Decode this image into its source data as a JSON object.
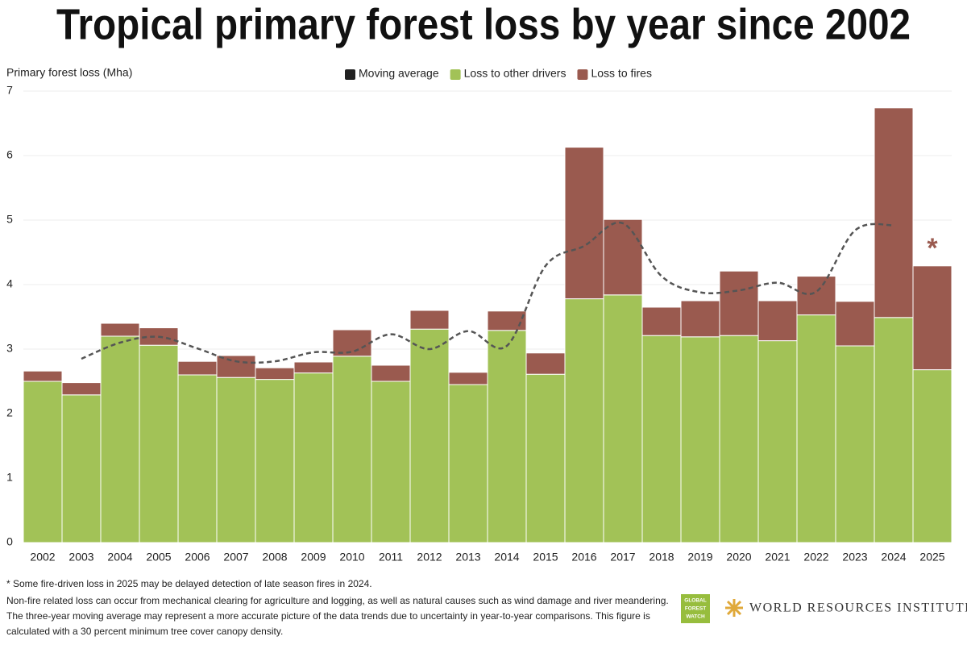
{
  "chart_data": {
    "type": "bar",
    "stacked": true,
    "title": "Tropical primary forest loss by year since 2002",
    "y_label": "Primary forest loss (Mha)",
    "annotation": "*",
    "categories": [
      "2002",
      "2003",
      "2004",
      "2005",
      "2006",
      "2007",
      "2008",
      "2009",
      "2010",
      "2011",
      "2012",
      "2013",
      "2014",
      "2015",
      "2016",
      "2017",
      "2018",
      "2019",
      "2020",
      "2021",
      "2022",
      "2023",
      "2024",
      "2025"
    ],
    "series": [
      {
        "name": "Moving average",
        "type": "line",
        "color": "#555555",
        "legend_color": "#222222",
        "values": [
          null,
          2.85,
          3.1,
          3.19,
          3.01,
          2.81,
          2.81,
          2.95,
          2.96,
          3.23,
          3.0,
          3.28,
          3.05,
          4.29,
          4.6,
          4.95,
          4.13,
          3.88,
          3.91,
          4.03,
          3.89,
          4.84,
          4.92,
          null
        ]
      },
      {
        "name": "Loss to other drivers",
        "type": "bar",
        "color": "#a2c257",
        "values": [
          2.5,
          2.29,
          3.2,
          3.06,
          2.6,
          2.56,
          2.53,
          2.63,
          2.89,
          2.5,
          3.31,
          2.45,
          3.29,
          2.61,
          3.78,
          3.84,
          3.21,
          3.19,
          3.21,
          3.13,
          3.53,
          3.05,
          3.49,
          2.68
        ]
      },
      {
        "name": "Loss to fires",
        "type": "bar",
        "color": "#9a5a4f",
        "values": [
          0.16,
          0.19,
          0.2,
          0.27,
          0.21,
          0.34,
          0.18,
          0.17,
          0.41,
          0.25,
          0.29,
          0.19,
          0.3,
          0.33,
          2.35,
          1.17,
          0.44,
          0.56,
          1.0,
          0.62,
          0.6,
          0.69,
          3.25,
          1.61
        ]
      }
    ],
    "ylim": [
      0,
      7
    ],
    "yticks": [
      0,
      1,
      2,
      3,
      4,
      5,
      6,
      7
    ],
    "grid": true,
    "legend": "top"
  },
  "footer": {
    "notes": [
      "* Some fire-driven loss in 2025 may be delayed detection of late season fires in 2024.",
      "Non-fire related loss can occur from mechanical clearing for agriculture and logging, as well as natural causes such as wind damage and river meandering.",
      "The three-year moving average may represent a more accurate picture of the data trends due to uncertainty in year-to-year comparisons. This figure is",
      "calculated with a 30 percent minimum tree cover canopy density."
    ],
    "gfw_logo": [
      "GLOBAL",
      "FOREST",
      "WATCH"
    ],
    "wri_logo": "WORLD RESOURCES INSTITUTE"
  }
}
